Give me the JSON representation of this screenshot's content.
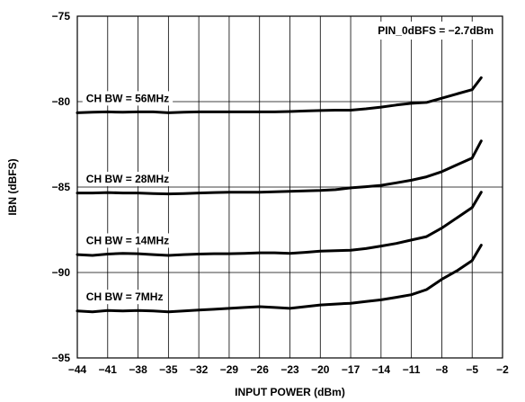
{
  "chart_data": {
    "type": "line",
    "title": "",
    "xlabel": "INPUT POWER (dBm)",
    "ylabel": "IBN (dBFS)",
    "xlim": [
      -44,
      -2
    ],
    "ylim": [
      -95,
      -75
    ],
    "xticks": [
      -44,
      -41,
      -38,
      -35,
      -32,
      -29,
      -26,
      -23,
      -20,
      -17,
      -14,
      -11,
      -8,
      -5,
      -2
    ],
    "xtick_labels": [
      "−44",
      "−41",
      "−38",
      "−35",
      "−32",
      "−29",
      "−26",
      "−23",
      "−20",
      "−17",
      "−14",
      "−11",
      "−8",
      "−5",
      "−2"
    ],
    "yticks": [
      -75,
      -80,
      -85,
      -90,
      -95
    ],
    "ytick_labels": [
      "−75",
      "−80",
      "−85",
      "−90",
      "−95"
    ],
    "grid": true,
    "legend": "none",
    "annotations": [
      {
        "text": "PIN_0dBFS = −2.7dBm",
        "position": "top-right"
      }
    ],
    "series": [
      {
        "name": "CH BW = 56MHz",
        "x": [
          -44,
          -42.5,
          -41,
          -39.5,
          -38,
          -36.5,
          -35,
          -33.5,
          -32,
          -30.5,
          -29,
          -27.5,
          -26,
          -24.5,
          -23,
          -21.5,
          -20,
          -18.5,
          -17,
          -15.5,
          -14,
          -12.5,
          -11,
          -9.5,
          -8,
          -6.5,
          -5,
          -4.1
        ],
        "y": [
          -80.65,
          -80.62,
          -80.6,
          -80.62,
          -80.6,
          -80.6,
          -80.65,
          -80.62,
          -80.6,
          -80.6,
          -80.6,
          -80.6,
          -80.6,
          -80.6,
          -80.58,
          -80.55,
          -80.52,
          -80.5,
          -80.5,
          -80.42,
          -80.32,
          -80.2,
          -80.1,
          -80.05,
          -79.8,
          -79.55,
          -79.3,
          -78.6
        ]
      },
      {
        "name": "CH BW = 28MHz",
        "x": [
          -44,
          -42.5,
          -41,
          -39.5,
          -38,
          -36.5,
          -35,
          -33.5,
          -32,
          -30.5,
          -29,
          -27.5,
          -26,
          -24.5,
          -23,
          -21.5,
          -20,
          -18.5,
          -17,
          -15.5,
          -14,
          -12.5,
          -11,
          -9.5,
          -8,
          -6.5,
          -5,
          -4.1
        ],
        "y": [
          -85.35,
          -85.35,
          -85.32,
          -85.35,
          -85.35,
          -85.38,
          -85.4,
          -85.38,
          -85.35,
          -85.32,
          -85.3,
          -85.3,
          -85.3,
          -85.28,
          -85.25,
          -85.22,
          -85.2,
          -85.15,
          -85.05,
          -84.98,
          -84.9,
          -84.75,
          -84.6,
          -84.4,
          -84.1,
          -83.7,
          -83.3,
          -82.3
        ]
      },
      {
        "name": "CH BW = 14MHz",
        "x": [
          -44,
          -42.5,
          -41,
          -39.5,
          -38,
          -36.5,
          -35,
          -33.5,
          -32,
          -30.5,
          -29,
          -27.5,
          -26,
          -24.5,
          -23,
          -21.5,
          -20,
          -18.5,
          -17,
          -15.5,
          -14,
          -12.5,
          -11,
          -9.5,
          -8,
          -6.5,
          -5,
          -4.1
        ],
        "y": [
          -88.95,
          -89.0,
          -88.92,
          -88.88,
          -88.9,
          -88.95,
          -89.0,
          -88.95,
          -88.92,
          -88.9,
          -88.9,
          -88.88,
          -88.85,
          -88.85,
          -88.88,
          -88.82,
          -88.75,
          -88.72,
          -88.7,
          -88.6,
          -88.45,
          -88.3,
          -88.1,
          -87.9,
          -87.4,
          -86.8,
          -86.2,
          -85.3
        ]
      },
      {
        "name": "CH BW = 7MHz",
        "x": [
          -44,
          -42.5,
          -41,
          -39.5,
          -38,
          -36.5,
          -35,
          -33.5,
          -32,
          -30.5,
          -29,
          -27.5,
          -26,
          -24.5,
          -23,
          -21.5,
          -20,
          -18.5,
          -17,
          -15.5,
          -14,
          -12.5,
          -11,
          -9.5,
          -8,
          -6.5,
          -5,
          -4.1
        ],
        "y": [
          -92.25,
          -92.3,
          -92.22,
          -92.25,
          -92.22,
          -92.25,
          -92.3,
          -92.25,
          -92.2,
          -92.15,
          -92.1,
          -92.05,
          -92.0,
          -92.05,
          -92.1,
          -92.0,
          -91.9,
          -91.85,
          -91.8,
          -91.7,
          -91.6,
          -91.45,
          -91.3,
          -91.0,
          -90.4,
          -89.9,
          -89.3,
          -88.4
        ]
      }
    ]
  }
}
